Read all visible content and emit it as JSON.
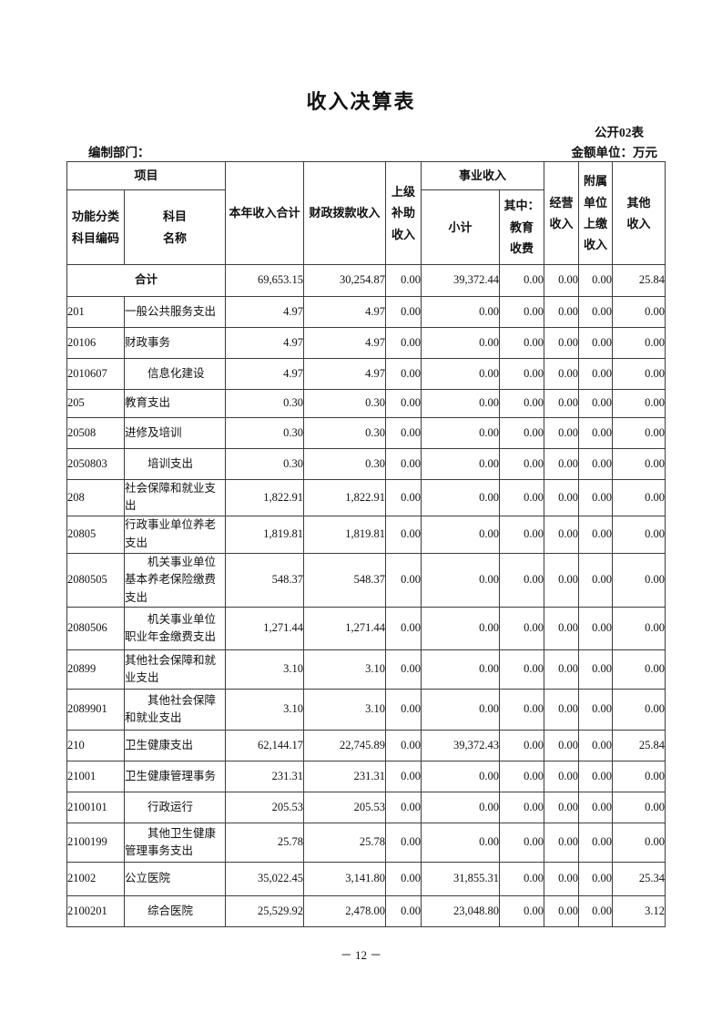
{
  "page": {
    "title": "收入决算表",
    "table_code": "公开02表",
    "dept_label": "编制部门：",
    "unit_label": "金额单位：万元",
    "page_number": "－ 12 －"
  },
  "table": {
    "header": {
      "project": "项目",
      "col_code": "功能分类\n科目编码",
      "col_name": "科目\n名称",
      "col_total": "本年收入合计",
      "col_fiscal": "财政拨款收入",
      "col_superior": "上级\n补助\n收入",
      "group_business": "事业收入",
      "col_subtotal": "小计",
      "col_edu": "其中：\n教育\n收费",
      "col_operating": "经营\n收入",
      "col_affiliate": "附属\n单位\n上缴\n收入",
      "col_other": "其他\n收入"
    },
    "rows": [
      {
        "code": "",
        "name": "合计",
        "total": true,
        "indent": false,
        "values": [
          "69,653.15",
          "30,254.87",
          "0.00",
          "39,372.44",
          "0.00",
          "0.00",
          "0.00",
          "25.84"
        ]
      },
      {
        "code": "201",
        "name": "一般公共服务支出",
        "indent": false,
        "values": [
          "4.97",
          "4.97",
          "0.00",
          "0.00",
          "0.00",
          "0.00",
          "0.00",
          "0.00"
        ]
      },
      {
        "code": "20106",
        "name": "财政事务",
        "indent": false,
        "values": [
          "4.97",
          "4.97",
          "0.00",
          "0.00",
          "0.00",
          "0.00",
          "0.00",
          "0.00"
        ]
      },
      {
        "code": "2010607",
        "name": "信息化建设",
        "indent": true,
        "values": [
          "4.97",
          "4.97",
          "0.00",
          "0.00",
          "0.00",
          "0.00",
          "0.00",
          "0.00"
        ]
      },
      {
        "code": "205",
        "name": "教育支出",
        "indent": false,
        "values": [
          "0.30",
          "0.30",
          "0.00",
          "0.00",
          "0.00",
          "0.00",
          "0.00",
          "0.00"
        ]
      },
      {
        "code": "20508",
        "name": "进修及培训",
        "indent": false,
        "values": [
          "0.30",
          "0.30",
          "0.00",
          "0.00",
          "0.00",
          "0.00",
          "0.00",
          "0.00"
        ]
      },
      {
        "code": "2050803",
        "name": "培训支出",
        "indent": true,
        "values": [
          "0.30",
          "0.30",
          "0.00",
          "0.00",
          "0.00",
          "0.00",
          "0.00",
          "0.00"
        ]
      },
      {
        "code": "208",
        "name": "社会保障和就业支出",
        "indent": false,
        "values": [
          "1,822.91",
          "1,822.91",
          "0.00",
          "0.00",
          "0.00",
          "0.00",
          "0.00",
          "0.00"
        ]
      },
      {
        "code": "20805",
        "name": "行政事业单位养老支出",
        "indent": false,
        "values": [
          "1,819.81",
          "1,819.81",
          "0.00",
          "0.00",
          "0.00",
          "0.00",
          "0.00",
          "0.00"
        ]
      },
      {
        "code": "2080505",
        "name": "机关事业单位基本养老保险缴费支出",
        "indent": true,
        "values": [
          "548.37",
          "548.37",
          "0.00",
          "0.00",
          "0.00",
          "0.00",
          "0.00",
          "0.00"
        ]
      },
      {
        "code": "2080506",
        "name": "机关事业单位职业年金缴费支出",
        "indent": true,
        "values": [
          "1,271.44",
          "1,271.44",
          "0.00",
          "0.00",
          "0.00",
          "0.00",
          "0.00",
          "0.00"
        ]
      },
      {
        "code": "20899",
        "name": "其他社会保障和就业支出",
        "indent": false,
        "values": [
          "3.10",
          "3.10",
          "0.00",
          "0.00",
          "0.00",
          "0.00",
          "0.00",
          "0.00"
        ]
      },
      {
        "code": "2089901",
        "name": "其他社会保障和就业支出",
        "indent": true,
        "values": [
          "3.10",
          "3.10",
          "0.00",
          "0.00",
          "0.00",
          "0.00",
          "0.00",
          "0.00"
        ]
      },
      {
        "code": "210",
        "name": "卫生健康支出",
        "indent": false,
        "values": [
          "62,144.17",
          "22,745.89",
          "0.00",
          "39,372.43",
          "0.00",
          "0.00",
          "0.00",
          "25.84"
        ]
      },
      {
        "code": "21001",
        "name": "卫生健康管理事务",
        "indent": false,
        "values": [
          "231.31",
          "231.31",
          "0.00",
          "0.00",
          "0.00",
          "0.00",
          "0.00",
          "0.00"
        ]
      },
      {
        "code": "2100101",
        "name": "行政运行",
        "indent": true,
        "values": [
          "205.53",
          "205.53",
          "0.00",
          "0.00",
          "0.00",
          "0.00",
          "0.00",
          "0.00"
        ]
      },
      {
        "code": "2100199",
        "name": "其他卫生健康管理事务支出",
        "indent": true,
        "values": [
          "25.78",
          "25.78",
          "0.00",
          "0.00",
          "0.00",
          "0.00",
          "0.00",
          "0.00"
        ]
      },
      {
        "code": "21002",
        "name": "公立医院",
        "indent": false,
        "values": [
          "35,022.45",
          "3,141.80",
          "0.00",
          "31,855.31",
          "0.00",
          "0.00",
          "0.00",
          "25.34"
        ]
      },
      {
        "code": "2100201",
        "name": "综合医院",
        "indent": true,
        "values": [
          "25,529.92",
          "2,478.00",
          "0.00",
          "23,048.80",
          "0.00",
          "0.00",
          "0.00",
          "3.12"
        ]
      }
    ]
  }
}
